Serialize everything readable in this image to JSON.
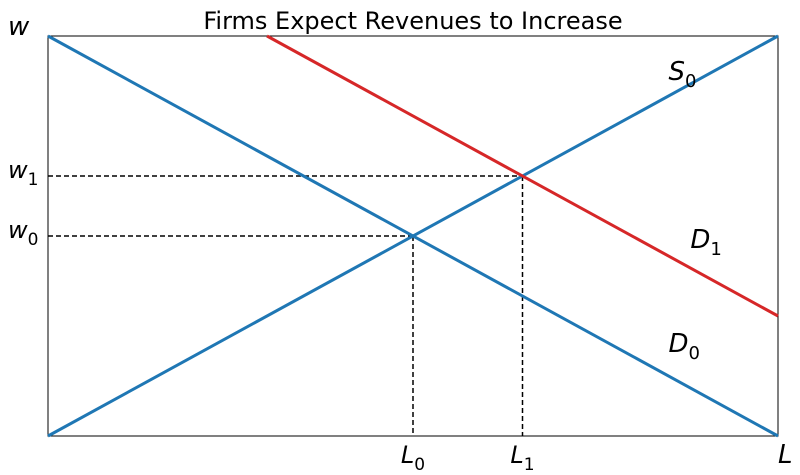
{
  "chart_data": {
    "type": "line",
    "title": "Firms Expect Revenues to Increase",
    "xlabel": "L",
    "ylabel": "w",
    "xlim": [
      0,
      10
    ],
    "ylim": [
      0,
      10
    ],
    "grid": false,
    "series": [
      {
        "name": "S0",
        "label_base": "S",
        "label_sub": "0",
        "color": "#1f77b4",
        "x": [
          0,
          10
        ],
        "y": [
          0,
          10
        ]
      },
      {
        "name": "D0",
        "label_base": "D",
        "label_sub": "0",
        "color": "#1f77b4",
        "x": [
          0,
          10
        ],
        "y": [
          10,
          0
        ]
      },
      {
        "name": "D1",
        "label_base": "D",
        "label_sub": "1",
        "color": "#d62728",
        "x": [
          3,
          10
        ],
        "y": [
          10,
          3
        ]
      }
    ],
    "equilibria": [
      {
        "x": 5.0,
        "y": 5.0,
        "x_label_base": "L",
        "x_label_sub": "0",
        "y_label_base": "w",
        "y_label_sub": "0"
      },
      {
        "x": 6.5,
        "y": 6.5,
        "x_label_base": "L",
        "x_label_sub": "1",
        "y_label_base": "w",
        "y_label_sub": "1"
      }
    ],
    "curve_labels": [
      {
        "series": "S0",
        "x": 8.5,
        "y": 8.9
      },
      {
        "series": "D1",
        "x": 8.8,
        "y": 4.7
      },
      {
        "series": "D0",
        "x": 8.5,
        "y": 2.1
      }
    ]
  }
}
